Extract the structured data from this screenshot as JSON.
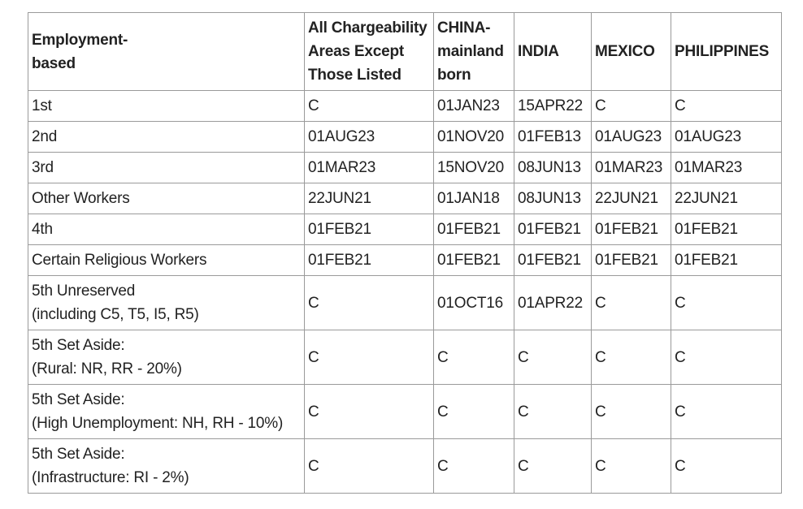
{
  "table": {
    "headers": [
      [
        "Employment-",
        "based"
      ],
      [
        "All Chargeability",
        "Areas Except",
        "Those Listed"
      ],
      [
        "CHINA-",
        "mainland",
        "born"
      ],
      [
        "INDIA"
      ],
      [
        "MEXICO"
      ],
      [
        "PHILIPPINES"
      ]
    ],
    "rows": [
      {
        "category": [
          "1st"
        ],
        "values": [
          "C",
          "01JAN23",
          "15APR22",
          "C",
          "C"
        ]
      },
      {
        "category": [
          "2nd"
        ],
        "values": [
          "01AUG23",
          "01NOV20",
          "01FEB13",
          "01AUG23",
          "01AUG23"
        ]
      },
      {
        "category": [
          "3rd"
        ],
        "values": [
          "01MAR23",
          "15NOV20",
          "08JUN13",
          "01MAR23",
          "01MAR23"
        ]
      },
      {
        "category": [
          "Other Workers"
        ],
        "values": [
          "22JUN21",
          "01JAN18",
          "08JUN13",
          "22JUN21",
          "22JUN21"
        ]
      },
      {
        "category": [
          "4th"
        ],
        "values": [
          "01FEB21",
          "01FEB21",
          "01FEB21",
          "01FEB21",
          "01FEB21"
        ]
      },
      {
        "category": [
          "Certain Religious Workers"
        ],
        "values": [
          "01FEB21",
          "01FEB21",
          "01FEB21",
          "01FEB21",
          "01FEB21"
        ]
      },
      {
        "category": [
          "5th Unreserved",
          "(including C5, T5, I5, R5)"
        ],
        "values": [
          "C",
          "01OCT16",
          "01APR22",
          "C",
          "C"
        ]
      },
      {
        "category": [
          "5th Set Aside:",
          "(Rural: NR, RR - 20%)"
        ],
        "values": [
          "C",
          "C",
          "C",
          "C",
          "C"
        ]
      },
      {
        "category": [
          "5th Set Aside:",
          "(High Unemployment: NH, RH - 10%)"
        ],
        "values": [
          "C",
          "C",
          "C",
          "C",
          "C"
        ]
      },
      {
        "category": [
          "5th Set Aside:",
          "(Infrastructure: RI - 2%)"
        ],
        "values": [
          "C",
          "C",
          "C",
          "C",
          "C"
        ]
      }
    ]
  }
}
